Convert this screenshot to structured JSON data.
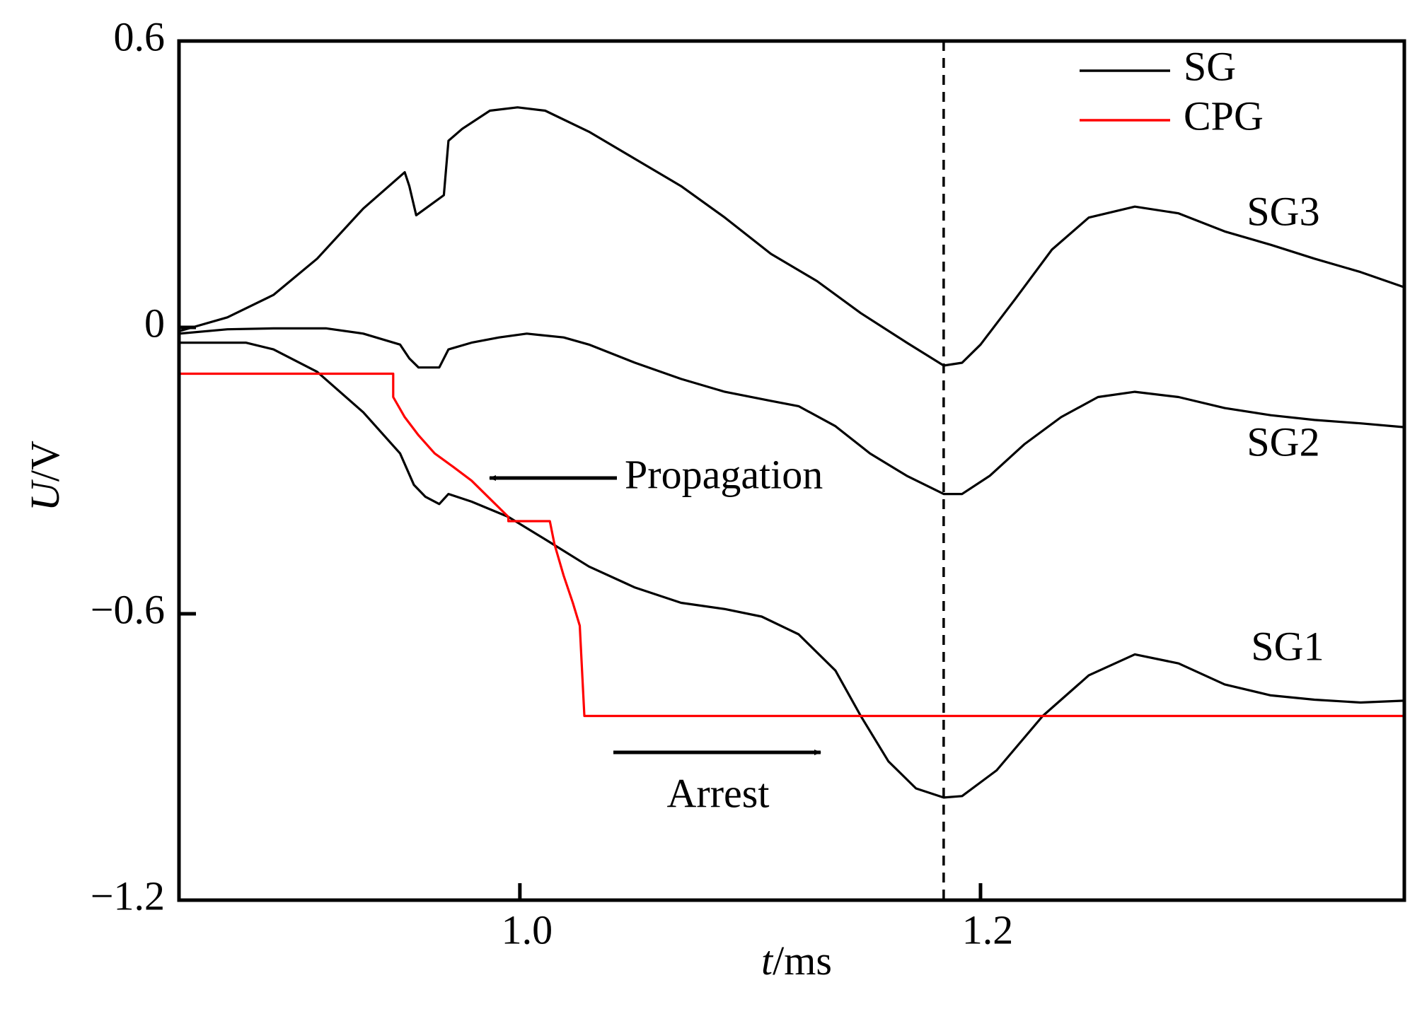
{
  "chart_data": {
    "type": "line",
    "xlabel": "t/ms",
    "ylabel": "U/V",
    "xlim": [
      0.852,
      1.384
    ],
    "ylim": [
      -1.2,
      0.6
    ],
    "xticks": [
      {
        "value": 1,
        "label": "1.0"
      },
      1.2
    ],
    "yticks": [
      0.6,
      0,
      {
        "value": -0.6,
        "label": "−0.6"
      },
      {
        "value": -1.2,
        "label": "−1.2"
      }
    ],
    "vline": 1.184,
    "legend_label": "SG",
    "legend_corner": "upper right",
    "annotations": [
      {
        "text": "Propagation"
      },
      {
        "text": "Arrest"
      }
    ],
    "series": [
      {
        "name": "SG1",
        "color": "#000000",
        "x": [
          0.852,
          0.881,
          0.893,
          0.912,
          0.932,
          0.948,
          0.954,
          0.959,
          0.965,
          0.969,
          0.979,
          0.995,
          1.011,
          1.03,
          1.05,
          1.07,
          1.089,
          1.105,
          1.121,
          1.137,
          1.148,
          1.16,
          1.172,
          1.184,
          1.192,
          1.207,
          1.227,
          1.247,
          1.267,
          1.286,
          1.306,
          1.326,
          1.345,
          1.365,
          1.384
        ],
        "values": [
          -0.032,
          -0.032,
          -0.046,
          -0.093,
          -0.178,
          -0.264,
          -0.33,
          -0.355,
          -0.37,
          -0.349,
          -0.365,
          -0.397,
          -0.444,
          -0.501,
          -0.545,
          -0.577,
          -0.59,
          -0.606,
          -0.643,
          -0.719,
          -0.814,
          -0.909,
          -0.966,
          -0.985,
          -0.982,
          -0.928,
          -0.814,
          -0.729,
          -0.685,
          -0.704,
          -0.748,
          -0.771,
          -0.78,
          -0.786,
          -0.782
        ]
      },
      {
        "name": "SG2",
        "color": "#000000",
        "x": [
          0.852,
          0.873,
          0.893,
          0.916,
          0.932,
          0.948,
          0.952,
          0.956,
          0.965,
          0.969,
          0.979,
          0.991,
          1.003,
          1.019,
          1.03,
          1.05,
          1.07,
          1.089,
          1.109,
          1.121,
          1.137,
          1.152,
          1.168,
          1.184,
          1.192,
          1.204,
          1.219,
          1.235,
          1.251,
          1.267,
          1.286,
          1.306,
          1.326,
          1.345,
          1.365,
          1.384
        ],
        "values": [
          -0.013,
          -0.004,
          -0.002,
          -0.002,
          -0.013,
          -0.036,
          -0.065,
          -0.084,
          -0.084,
          -0.046,
          -0.032,
          -0.021,
          -0.013,
          -0.021,
          -0.036,
          -0.074,
          -0.108,
          -0.135,
          -0.154,
          -0.165,
          -0.207,
          -0.264,
          -0.311,
          -0.349,
          -0.349,
          -0.311,
          -0.245,
          -0.188,
          -0.146,
          -0.135,
          -0.146,
          -0.169,
          -0.184,
          -0.194,
          -0.201,
          -0.209
        ]
      },
      {
        "name": "SG3",
        "color": "#000000",
        "x": [
          0.852,
          0.873,
          0.893,
          0.912,
          0.932,
          0.95,
          0.952,
          0.955,
          0.959,
          0.967,
          0.969,
          0.975,
          0.987,
          0.999,
          1.011,
          1.03,
          1.05,
          1.07,
          1.089,
          1.109,
          1.129,
          1.148,
          1.168,
          1.184,
          1.192,
          1.2,
          1.215,
          1.231,
          1.247,
          1.267,
          1.286,
          1.306,
          1.326,
          1.345,
          1.365,
          1.384
        ],
        "values": [
          -0.008,
          0.021,
          0.068,
          0.144,
          0.249,
          0.325,
          0.296,
          0.235,
          0.249,
          0.277,
          0.391,
          0.416,
          0.454,
          0.461,
          0.454,
          0.41,
          0.353,
          0.296,
          0.23,
          0.154,
          0.097,
          0.03,
          -0.032,
          -0.08,
          -0.074,
          -0.036,
          0.059,
          0.163,
          0.23,
          0.253,
          0.239,
          0.201,
          0.173,
          0.144,
          0.116,
          0.084
        ]
      },
      {
        "name": "CPG",
        "color": "#ff0000",
        "x": [
          0.852,
          0.945,
          0.945,
          0.95,
          0.956,
          0.963,
          0.971,
          0.979,
          0.987,
          0.995,
          0.995,
          1.013,
          1.015,
          1.019,
          1.023,
          1.026,
          1.028,
          1.384
        ],
        "values": [
          -0.097,
          -0.097,
          -0.146,
          -0.188,
          -0.226,
          -0.264,
          -0.292,
          -0.321,
          -0.359,
          -0.397,
          -0.406,
          -0.406,
          -0.454,
          -0.52,
          -0.577,
          -0.625,
          -0.814,
          -0.814
        ]
      }
    ]
  }
}
